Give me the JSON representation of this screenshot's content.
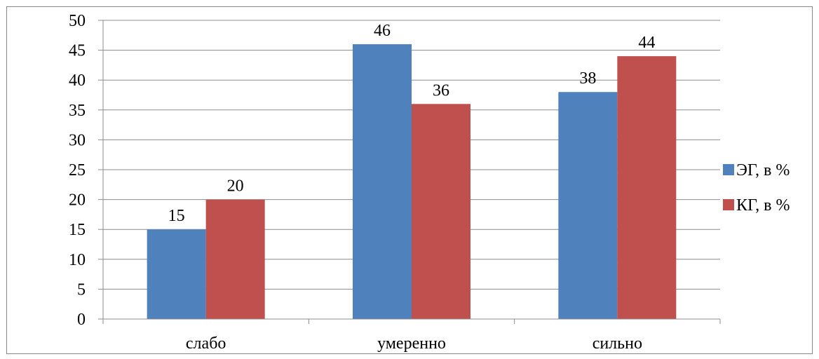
{
  "chart_data": {
    "type": "bar",
    "categories": [
      "слабо",
      "умеренно",
      "сильно"
    ],
    "series": [
      {
        "name": "ЭГ, в %",
        "values": [
          15,
          46,
          38
        ],
        "color": "#4f81bd"
      },
      {
        "name": "КГ, в %",
        "values": [
          20,
          36,
          44
        ],
        "color": "#c0504d"
      }
    ],
    "ylim": [
      0,
      50
    ],
    "yticks": [
      0,
      5,
      10,
      15,
      20,
      25,
      30,
      35,
      40,
      45,
      50
    ],
    "grid": true,
    "legend": "right",
    "data_labels": true
  }
}
